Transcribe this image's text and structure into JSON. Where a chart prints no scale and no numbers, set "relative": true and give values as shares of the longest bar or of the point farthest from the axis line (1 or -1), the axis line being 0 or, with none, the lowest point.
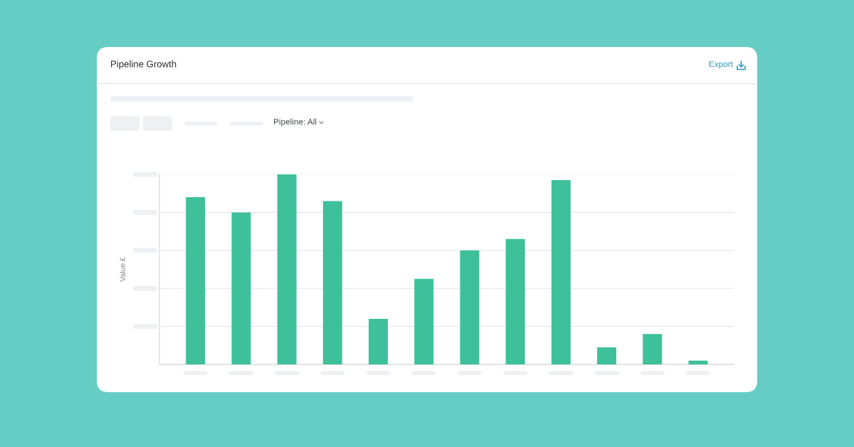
{
  "chart_data": {
    "type": "bar",
    "title": "Pipeline Growth",
    "ylabel": "Value £",
    "annotations": [
      "Export",
      "Pipeline: All"
    ],
    "categories": [
      null,
      null,
      null,
      null,
      null,
      null,
      null,
      null,
      null,
      null,
      null,
      null
    ],
    "values": [
      0.88,
      0.8,
      1.0,
      0.86,
      0.24,
      0.45,
      0.6,
      0.66,
      0.97,
      0.09,
      0.16,
      0.02
    ],
    "color": "#3ec19a",
    "relative": true,
    "grid": "y"
  }
}
